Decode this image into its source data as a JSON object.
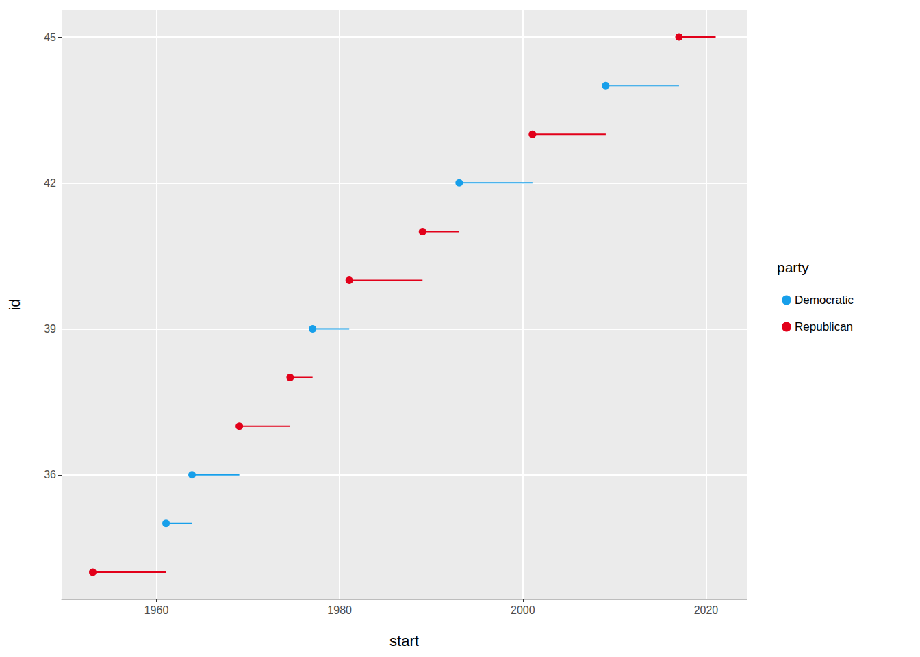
{
  "chart_data": {
    "type": "segment",
    "x_label": "start",
    "y_label": "id",
    "legend_title": "party",
    "legend": "right",
    "grid": true,
    "marker": "circle",
    "xlim": [
      1949.65,
      2024.45
    ],
    "xticks": [
      1960,
      1980,
      2000,
      2020
    ],
    "ylim": [
      33.45,
      45.55
    ],
    "yticks": [
      36,
      39,
      42,
      45
    ],
    "series": [
      {
        "name": "Democratic",
        "color": "#179FEA",
        "x": [
          1961.05,
          1963.89,
          1977.05,
          1993.05,
          2009.05
        ],
        "x_end": [
          1963.89,
          1969.05,
          1981.05,
          2001.05,
          2017.05
        ],
        "values": [
          35,
          36,
          39,
          42,
          44
        ]
      },
      {
        "name": "Republican",
        "color": "#E2001A",
        "x": [
          1953.05,
          1969.05,
          1974.6,
          1981.05,
          1989.05,
          2001.05,
          2017.05
        ],
        "x_end": [
          1961.05,
          1974.6,
          1977.05,
          1989.05,
          1993.05,
          2009.05,
          2021.05
        ],
        "values": [
          34,
          37,
          38,
          40,
          41,
          43,
          45
        ]
      }
    ]
  }
}
